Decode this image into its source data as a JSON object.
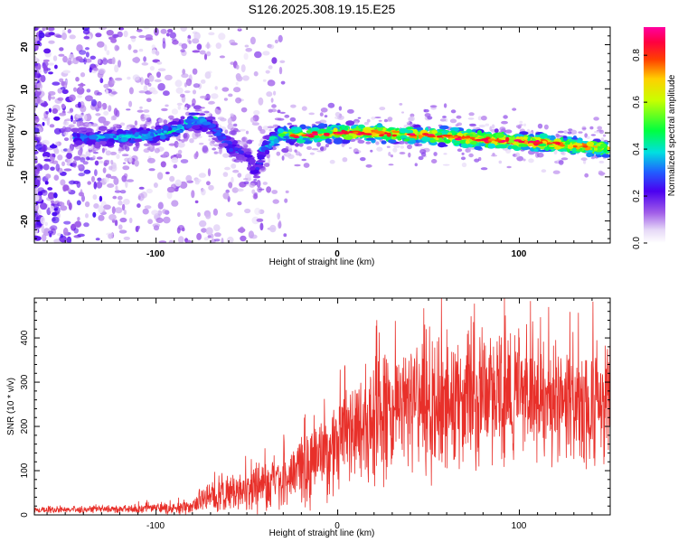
{
  "title": "S126.2025.308.19.15.E25",
  "chart_data": [
    {
      "type": "heatmap",
      "name": "spectrogram",
      "title": "S126.2025.308.19.15.E25",
      "xlabel": "Height of straight line (km)",
      "ylabel": "Frequency (Hz)",
      "xlim": [
        -167,
        150
      ],
      "ylim": [
        -25,
        24
      ],
      "xticks": [
        -100,
        0,
        100
      ],
      "yticks": [
        -20,
        -10,
        0,
        10,
        20
      ],
      "xtick_labels": [
        "-100",
        "0",
        "100"
      ],
      "ytick_labels": [
        "-20",
        "-10",
        "0",
        "10",
        "20"
      ],
      "colorbar": {
        "label": "Normalized spectral amplitude",
        "range": [
          0,
          0.92
        ],
        "ticks": [
          0.0,
          0.2,
          0.4,
          0.6,
          0.8
        ],
        "tick_labels": [
          "0.0",
          "0.2",
          "0.4",
          "0.6",
          "0.8"
        ],
        "colormap": "rainbow (white-violet-blue-cyan-green-yellow-red-magenta)"
      },
      "ridge": {
        "description": "dominant frequency band vs height",
        "x": [
          -140,
          -120,
          -100,
          -90,
          -80,
          -70,
          -60,
          -50,
          -45,
          -40,
          -30,
          -20,
          0,
          20,
          40,
          60,
          80,
          100,
          120,
          148
        ],
        "freq": [
          -1,
          -1,
          -0.5,
          0.5,
          3,
          2,
          -3,
          -5,
          -9,
          -3,
          0,
          -0.5,
          0,
          0,
          -0.5,
          -0.8,
          -1.5,
          -2,
          -2.5,
          -3.5
        ],
        "amplitude": [
          0.35,
          0.4,
          0.4,
          0.45,
          0.45,
          0.35,
          0.35,
          0.25,
          0.25,
          0.4,
          0.55,
          0.7,
          0.75,
          0.8,
          0.8,
          0.8,
          0.85,
          0.85,
          0.8,
          0.75
        ]
      }
    },
    {
      "type": "line",
      "name": "snr",
      "xlabel": "Height of straight line (km)",
      "ylabel": "SNR (10 * v/v)",
      "xlim": [
        -167,
        150
      ],
      "ylim": [
        0,
        490
      ],
      "xticks": [
        -100,
        0,
        100
      ],
      "yticks": [
        0,
        100,
        200,
        300,
        400
      ],
      "xtick_labels": [
        "-100",
        "0",
        "100"
      ],
      "ytick_labels": [
        "0",
        "100",
        "200",
        "300",
        "400"
      ],
      "color": "#e8302a",
      "envelope": {
        "x": [
          -167,
          -140,
          -110,
          -100,
          -80,
          -75,
          -60,
          -50,
          -40,
          -30,
          -20,
          -10,
          0,
          10,
          20,
          30,
          40,
          60,
          80,
          100,
          120,
          150
        ],
        "mean": [
          10,
          12,
          14,
          15,
          18,
          40,
          50,
          55,
          65,
          80,
          100,
          120,
          160,
          190,
          210,
          240,
          250,
          250,
          260,
          270,
          260,
          250
        ],
        "spread": [
          5,
          6,
          8,
          10,
          15,
          25,
          35,
          40,
          45,
          55,
          65,
          75,
          90,
          100,
          110,
          120,
          130,
          130,
          120,
          110,
          110,
          110
        ]
      }
    }
  ]
}
